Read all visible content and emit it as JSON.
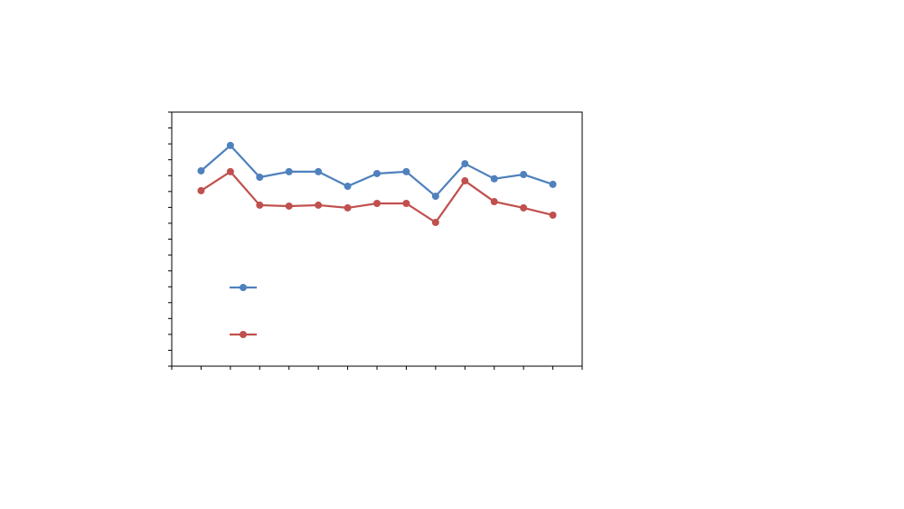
{
  "chart_data": {
    "type": "line",
    "x": [
      1,
      2,
      3,
      4,
      5,
      6,
      7,
      8,
      9,
      10,
      11,
      12,
      13
    ],
    "xlim": [
      0,
      14
    ],
    "xticks": [
      0,
      1,
      2,
      3,
      4,
      5,
      6,
      7,
      8,
      9,
      10,
      11,
      12,
      13,
      14
    ],
    "ylim": [
      0,
      16
    ],
    "yticks": [
      0,
      1,
      2,
      3,
      4,
      5,
      6,
      7,
      8,
      9,
      10,
      11,
      12,
      13,
      14,
      15,
      16
    ],
    "series": [
      {
        "color": "#4f81bd",
        "values": [
          12.3,
          13.9,
          11.9,
          12.25,
          12.25,
          11.33,
          12.13,
          12.25,
          10.7,
          12.75,
          11.8,
          12.07,
          11.45
        ]
      },
      {
        "color": "#c0504d",
        "values": [
          11.05,
          12.25,
          10.14,
          10.08,
          10.14,
          9.97,
          10.25,
          10.25,
          9.05,
          11.67,
          10.36,
          9.97,
          9.51
        ]
      }
    ]
  }
}
